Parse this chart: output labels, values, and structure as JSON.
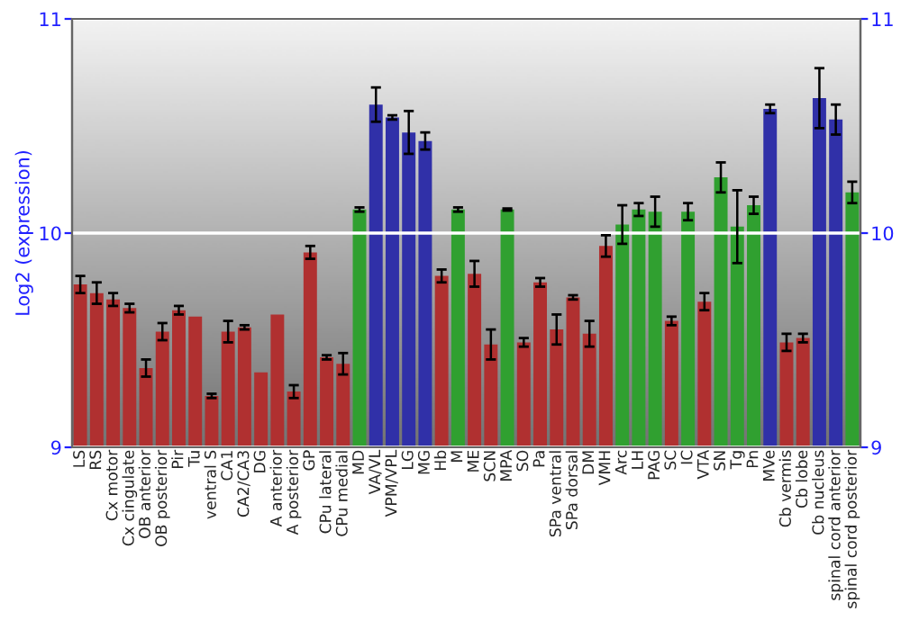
{
  "chart_data": {
    "type": "bar",
    "ylabel": "Log2 (expression)",
    "categories": [
      "LS",
      "RS",
      "Cx motor",
      "Cx cingulate",
      "OB anterior",
      "OB posterior",
      "Pir",
      "Tu",
      "ventral S",
      "CA1",
      "CA2/CA3",
      "DG",
      "A anterior",
      "A posterior",
      "GP",
      "CPu lateral",
      "CPu medial",
      "MD",
      "VA/VL",
      "VPM/VPL",
      "LG",
      "MG",
      "Hb",
      "M",
      "ME",
      "SCN",
      "MPA",
      "SO",
      "Pa",
      "SPa ventral",
      "SPa dorsal",
      "DM",
      "VMH",
      "Arc",
      "LH",
      "PAG",
      "SC",
      "IC",
      "VTA",
      "SN",
      "Tg",
      "Pn",
      "MVe",
      "Cb vermis",
      "Cb lobe",
      "Cb nucleus",
      "spinal cord anterior",
      "spinal cord posterior"
    ],
    "values": [
      9.76,
      9.72,
      9.69,
      9.65,
      9.37,
      9.54,
      9.64,
      9.61,
      9.24,
      9.54,
      9.56,
      9.35,
      9.62,
      9.26,
      9.91,
      9.42,
      9.39,
      10.11,
      10.6,
      10.54,
      10.47,
      10.43,
      9.8,
      10.11,
      9.81,
      9.48,
      10.11,
      9.49,
      9.77,
      9.55,
      9.7,
      9.53,
      9.94,
      10.04,
      10.11,
      10.1,
      9.59,
      10.1,
      9.68,
      10.26,
      10.03,
      10.13,
      10.58,
      9.49,
      9.51,
      10.63,
      10.53,
      10.19
    ],
    "errors": [
      0.04,
      0.05,
      0.03,
      0.02,
      0.04,
      0.04,
      0.02,
      null,
      0.01,
      0.05,
      0.01,
      null,
      null,
      0.03,
      0.03,
      0.01,
      0.05,
      0.01,
      0.08,
      0.01,
      0.1,
      0.04,
      0.03,
      0.01,
      0.06,
      0.07,
      0.005,
      0.02,
      0.02,
      0.07,
      0.01,
      0.06,
      0.05,
      0.09,
      0.03,
      0.07,
      0.02,
      0.04,
      0.04,
      0.07,
      0.17,
      0.04,
      0.02,
      0.04,
      0.02,
      0.14,
      0.07,
      0.05
    ],
    "colors": [
      "#b03030",
      "#b03030",
      "#b03030",
      "#b03030",
      "#b03030",
      "#b03030",
      "#b03030",
      "#b03030",
      "#b03030",
      "#b03030",
      "#b03030",
      "#b03030",
      "#b03030",
      "#b03030",
      "#b03030",
      "#b03030",
      "#b03030",
      "#30a030",
      "#3030a8",
      "#3030a8",
      "#3030a8",
      "#3030a8",
      "#b03030",
      "#30a030",
      "#b03030",
      "#b03030",
      "#30a030",
      "#b03030",
      "#b03030",
      "#b03030",
      "#b03030",
      "#b03030",
      "#b03030",
      "#30a030",
      "#30a030",
      "#30a030",
      "#b03030",
      "#30a030",
      "#b03030",
      "#30a030",
      "#30a030",
      "#30a030",
      "#3030a8",
      "#b03030",
      "#b03030",
      "#3030a8",
      "#3030a8",
      "#30a030"
    ],
    "ylim": [
      9,
      11
    ],
    "yticks": [
      9,
      10,
      11
    ],
    "y2lim": [
      9,
      11
    ],
    "y2ticks": [
      9,
      10,
      11
    ],
    "grid": "y"
  }
}
